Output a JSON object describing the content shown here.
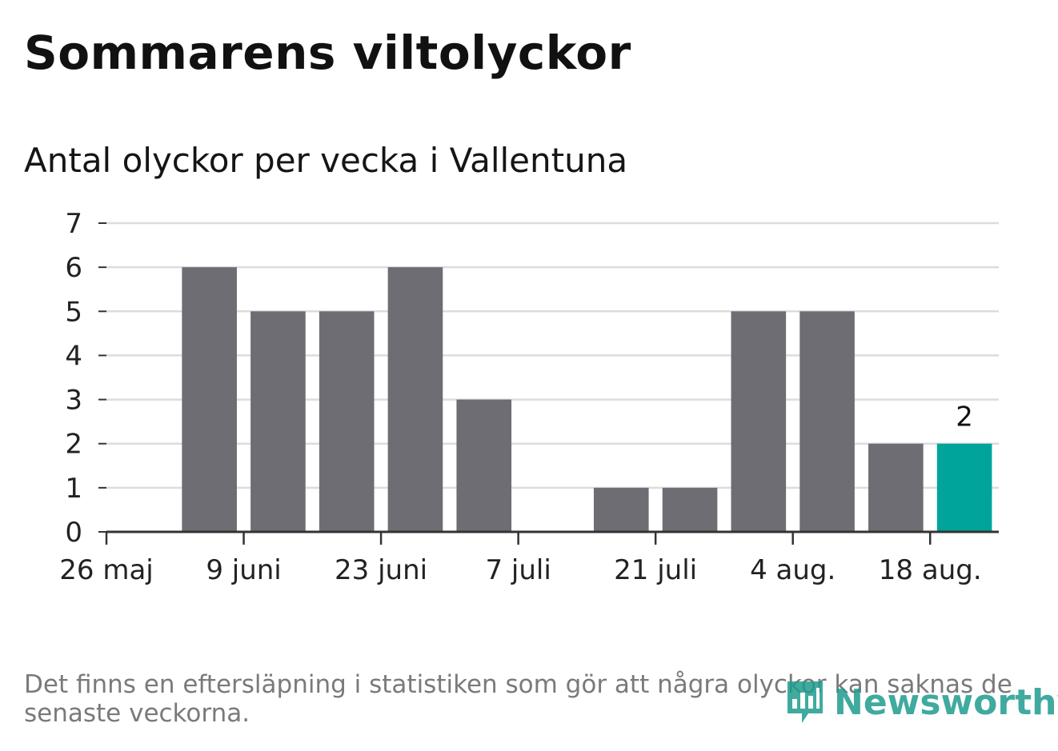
{
  "header": {
    "title": "Sommarens viltolyckor",
    "subtitle": "Antal olyckor per vecka i Vallentuna"
  },
  "footer": {
    "note": "Det finns en eftersläpning i statistiken som gör att några olyckor kan saknas de senaste veckorna.",
    "brand": "Newsworthy"
  },
  "colors": {
    "bar": "#6e6d74",
    "highlight": "#00a49b",
    "grid": "#dcdcdc",
    "axis": "#333333"
  },
  "chart_data": {
    "type": "bar",
    "title": "Sommarens viltolyckor",
    "subtitle": "Antal olyckor per vecka i Vallentuna",
    "categories": [
      "26 maj",
      "2 juni",
      "9 juni",
      "16 juni",
      "23 juni",
      "30 juni",
      "7 juli",
      "14 juli",
      "21 juli",
      "28 juli",
      "4 aug.",
      "11 aug.",
      "18 aug."
    ],
    "values": [
      0,
      6,
      5,
      5,
      6,
      3,
      0,
      1,
      1,
      5,
      5,
      2,
      2
    ],
    "x_tick_labels": [
      "26 maj",
      "9 juni",
      "23 juni",
      "7 juli",
      "21 juli",
      "4 aug.",
      "18 aug."
    ],
    "y_ticks": [
      0,
      1,
      2,
      3,
      4,
      5,
      6,
      7
    ],
    "ylim": [
      0,
      7
    ],
    "highlight_last": true,
    "data_labels": [
      {
        "category": "18 aug.",
        "value": "2"
      }
    ],
    "grid": true,
    "legend": false,
    "xlabel": "",
    "ylabel": ""
  }
}
